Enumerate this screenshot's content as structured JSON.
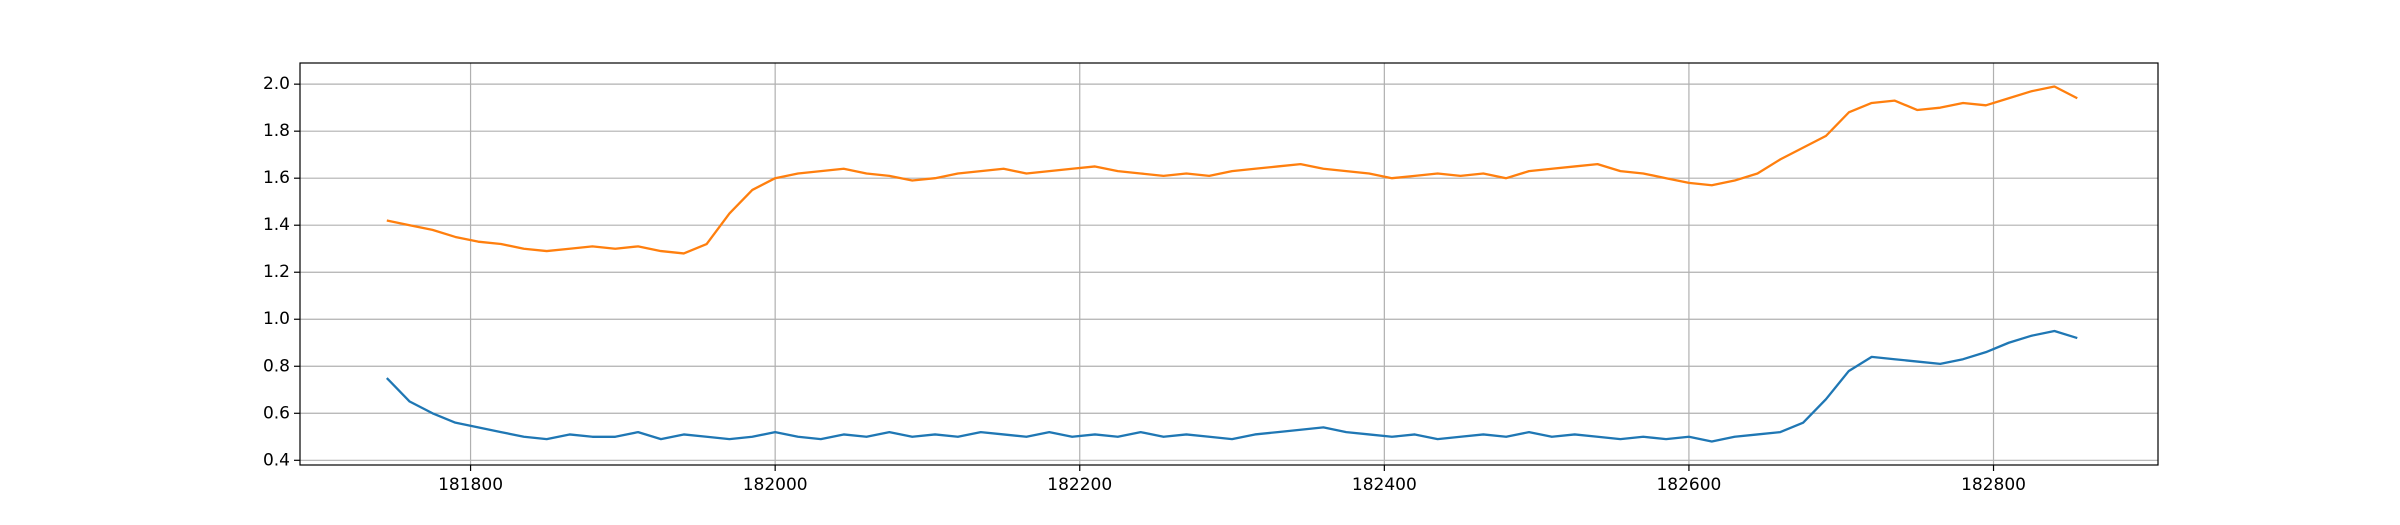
{
  "chart_data": {
    "type": "line",
    "x": [
      181745,
      181760,
      181775,
      181790,
      181805,
      181820,
      181835,
      181850,
      181865,
      181880,
      181895,
      181910,
      181925,
      181940,
      181955,
      181970,
      181985,
      182000,
      182015,
      182030,
      182045,
      182060,
      182075,
      182090,
      182105,
      182120,
      182135,
      182150,
      182165,
      182180,
      182195,
      182210,
      182225,
      182240,
      182255,
      182270,
      182285,
      182300,
      182315,
      182330,
      182345,
      182360,
      182375,
      182390,
      182405,
      182420,
      182435,
      182450,
      182465,
      182480,
      182495,
      182510,
      182525,
      182540,
      182555,
      182570,
      182585,
      182600,
      182615,
      182630,
      182645,
      182660,
      182675,
      182690,
      182705,
      182720,
      182735,
      182750,
      182765,
      182780,
      182795,
      182810,
      182825,
      182840,
      182855
    ],
    "series": [
      {
        "color": "#1f77b4",
        "values": [
          0.75,
          0.65,
          0.6,
          0.56,
          0.54,
          0.52,
          0.5,
          0.49,
          0.51,
          0.5,
          0.5,
          0.52,
          0.49,
          0.51,
          0.5,
          0.49,
          0.5,
          0.52,
          0.5,
          0.49,
          0.51,
          0.5,
          0.52,
          0.5,
          0.51,
          0.5,
          0.52,
          0.51,
          0.5,
          0.52,
          0.5,
          0.51,
          0.5,
          0.52,
          0.5,
          0.51,
          0.5,
          0.49,
          0.51,
          0.52,
          0.53,
          0.54,
          0.52,
          0.51,
          0.5,
          0.51,
          0.49,
          0.5,
          0.51,
          0.5,
          0.52,
          0.5,
          0.51,
          0.5,
          0.49,
          0.5,
          0.49,
          0.5,
          0.48,
          0.5,
          0.51,
          0.52,
          0.56,
          0.66,
          0.78,
          0.84,
          0.83,
          0.82,
          0.81,
          0.83,
          0.86,
          0.9,
          0.93,
          0.95,
          0.92
        ]
      },
      {
        "color": "#ff7f0e",
        "values": [
          1.42,
          1.4,
          1.38,
          1.35,
          1.33,
          1.32,
          1.3,
          1.29,
          1.3,
          1.31,
          1.3,
          1.31,
          1.29,
          1.28,
          1.32,
          1.45,
          1.55,
          1.6,
          1.62,
          1.63,
          1.64,
          1.62,
          1.61,
          1.59,
          1.6,
          1.62,
          1.63,
          1.64,
          1.62,
          1.63,
          1.64,
          1.65,
          1.63,
          1.62,
          1.61,
          1.62,
          1.61,
          1.63,
          1.64,
          1.65,
          1.66,
          1.64,
          1.63,
          1.62,
          1.6,
          1.61,
          1.62,
          1.61,
          1.62,
          1.6,
          1.63,
          1.64,
          1.65,
          1.66,
          1.63,
          1.62,
          1.6,
          1.58,
          1.57,
          1.59,
          1.62,
          1.68,
          1.73,
          1.78,
          1.88,
          1.92,
          1.93,
          1.89,
          1.9,
          1.92,
          1.91,
          1.94,
          1.97,
          1.99,
          1.94
        ]
      }
    ],
    "xlim": [
      181688,
      182908
    ],
    "xticks": [
      181800,
      182000,
      182200,
      182400,
      182600,
      182800
    ],
    "ylim": [
      0.38,
      2.09
    ],
    "yticks": [
      0.4,
      0.6,
      0.8,
      {
        "value": 1.0,
        "label": "1.0"
      },
      1.2,
      1.4,
      1.6,
      1.8,
      {
        "value": 2.0,
        "label": "2.0"
      }
    ],
    "grid": true
  }
}
